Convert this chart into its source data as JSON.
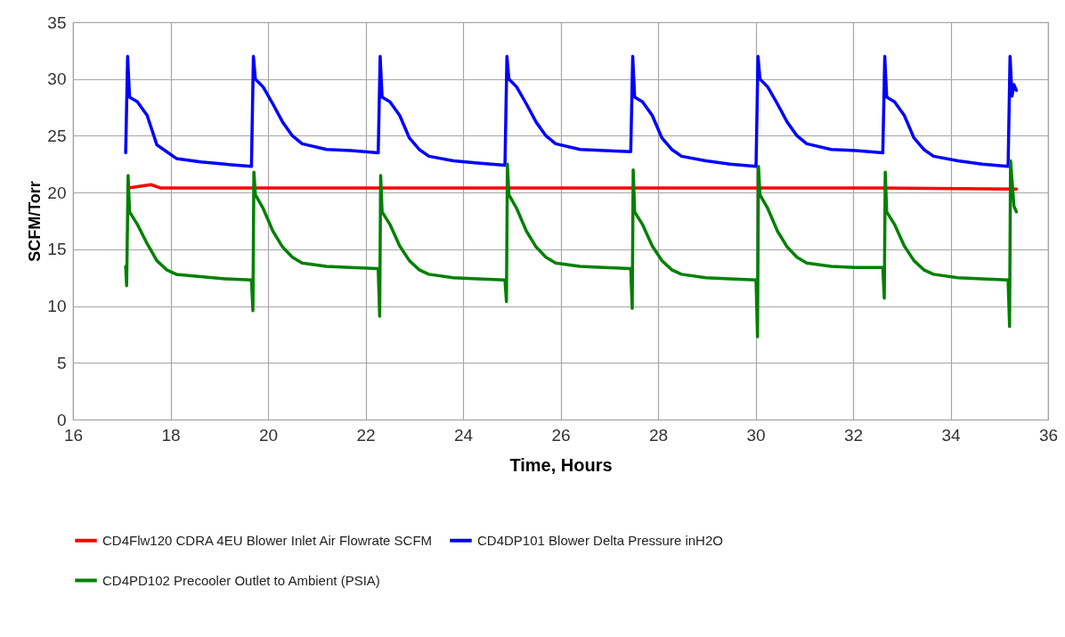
{
  "chart_data": {
    "type": "line",
    "xlabel": "Time, Hours",
    "ylabel": "SCFM/Torr",
    "xlim": [
      16,
      36
    ],
    "xticks": [
      16,
      18,
      20,
      22,
      24,
      26,
      28,
      30,
      32,
      34,
      36
    ],
    "ylim": [
      0,
      35
    ],
    "yticks": [
      0,
      5,
      10,
      15,
      20,
      25,
      30,
      35
    ],
    "grid": true,
    "legend": "bottom",
    "marker": "none",
    "line_style": "solid",
    "series": [
      {
        "name": "CD4Flw120  CDRA 4EU Blower Inlet Air Flowrate SCFM",
        "color": "#ff0000",
        "x": [
          17.13,
          17.6,
          17.8,
          20,
          22.5,
          25,
          27.5,
          30,
          32.5,
          35.35
        ],
        "values": [
          20.4,
          20.7,
          20.4,
          20.4,
          20.4,
          20.4,
          20.4,
          20.4,
          20.4,
          20.3
        ]
      },
      {
        "name": "CD4DP101 Blower Delta Pressure inH2O",
        "color": "#0000ff",
        "x": [
          17.08,
          17.12,
          17.16,
          17.32,
          17.52,
          17.72,
          17.92,
          18.12,
          18.62,
          19.12,
          19.66,
          19.7,
          19.74,
          19.9,
          20.1,
          20.3,
          20.5,
          20.7,
          21.2,
          21.7,
          22.26,
          22.3,
          22.34,
          22.5,
          22.7,
          22.9,
          23.1,
          23.3,
          23.8,
          24.3,
          24.86,
          24.9,
          24.94,
          25.1,
          25.3,
          25.5,
          25.7,
          25.9,
          26.4,
          26.9,
          27.44,
          27.48,
          27.52,
          27.68,
          27.88,
          28.08,
          28.28,
          28.48,
          28.98,
          29.48,
          30.01,
          30.05,
          30.09,
          30.25,
          30.45,
          30.65,
          30.85,
          31.05,
          31.55,
          32.05,
          32.61,
          32.65,
          32.69,
          32.85,
          33.05,
          33.25,
          33.45,
          33.65,
          34.15,
          34.65,
          35.18,
          35.22,
          35.26,
          35.3,
          35.35
        ],
        "values": [
          23.5,
          32,
          28.4,
          28,
          26.8,
          24.2,
          23.6,
          23,
          22.7,
          22.5,
          22.3,
          32,
          30,
          29.3,
          27.8,
          26.2,
          25,
          24.3,
          23.8,
          23.7,
          23.5,
          32,
          28.4,
          28,
          26.8,
          24.8,
          23.8,
          23.2,
          22.8,
          22.6,
          22.4,
          32,
          30,
          29.3,
          27.8,
          26.2,
          25,
          24.3,
          23.8,
          23.7,
          23.6,
          32,
          28.4,
          28,
          26.8,
          24.8,
          23.8,
          23.2,
          22.8,
          22.5,
          22.3,
          32,
          30,
          29.3,
          27.8,
          26.2,
          25,
          24.3,
          23.8,
          23.7,
          23.5,
          32,
          28.4,
          28,
          26.8,
          24.8,
          23.8,
          23.2,
          22.8,
          22.5,
          22.3,
          32,
          28.5,
          29.5,
          29
        ]
      },
      {
        "name": "CD4PD102  Precooler Outlet to Ambient (PSIA)",
        "color": "#008000",
        "x": [
          17.08,
          17.1,
          17.13,
          17.16,
          17.32,
          17.52,
          17.72,
          17.92,
          18.12,
          18.62,
          19.12,
          19.66,
          19.69,
          19.71,
          19.74,
          19.9,
          20.1,
          20.3,
          20.5,
          20.7,
          21.2,
          21.7,
          22.26,
          22.29,
          22.31,
          22.34,
          22.5,
          22.7,
          22.9,
          23.1,
          23.3,
          23.8,
          24.3,
          24.86,
          24.89,
          24.91,
          24.94,
          25.1,
          25.3,
          25.5,
          25.7,
          25.9,
          26.4,
          26.9,
          27.44,
          27.47,
          27.49,
          27.52,
          27.68,
          27.88,
          28.08,
          28.28,
          28.48,
          28.98,
          29.48,
          30.01,
          30.04,
          30.06,
          30.09,
          30.25,
          30.45,
          30.65,
          30.85,
          31.05,
          31.55,
          32.05,
          32.61,
          32.64,
          32.66,
          32.69,
          32.85,
          33.05,
          33.25,
          33.45,
          33.65,
          34.15,
          34.65,
          35.18,
          35.21,
          35.23,
          35.3,
          35.35
        ],
        "values": [
          13.5,
          11.8,
          21.5,
          18.3,
          17.2,
          15.5,
          14,
          13.2,
          12.8,
          12.6,
          12.4,
          12.3,
          9.6,
          21.8,
          19.8,
          18.6,
          16.6,
          15.2,
          14.3,
          13.8,
          13.5,
          13.4,
          13.3,
          9.1,
          21.5,
          18.3,
          17.2,
          15.3,
          14,
          13.2,
          12.8,
          12.5,
          12.4,
          12.3,
          10.4,
          22.5,
          19.8,
          18.6,
          16.6,
          15.2,
          14.3,
          13.8,
          13.5,
          13.4,
          13.3,
          9.8,
          22,
          18.3,
          17.2,
          15.3,
          14,
          13.2,
          12.8,
          12.5,
          12.4,
          12.3,
          7.3,
          22.3,
          19.8,
          18.6,
          16.6,
          15.2,
          14.3,
          13.8,
          13.5,
          13.4,
          13.4,
          10.7,
          21.8,
          18.3,
          17.2,
          15.3,
          14,
          13.2,
          12.8,
          12.5,
          12.4,
          12.3,
          8.2,
          22.8,
          18.8,
          18.3
        ]
      }
    ]
  }
}
